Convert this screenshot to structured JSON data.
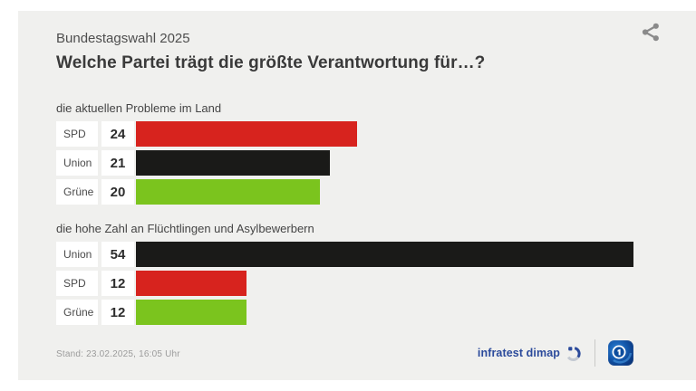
{
  "header": {
    "kicker": "Bundestagswahl 2025",
    "title": "Welche Partei trägt die größte Verantwortung für…?"
  },
  "toolbar": {
    "share_icon": "share-icon"
  },
  "chart_data": [
    {
      "type": "bar",
      "orientation": "horizontal",
      "title": "die aktuellen Probleme im Land",
      "categories": [
        "SPD",
        "Union",
        "Grüne"
      ],
      "values": [
        24,
        21,
        20
      ],
      "colors": [
        "#d7231e",
        "#1a1a18",
        "#7bc41e"
      ],
      "xlim": [
        0,
        54
      ],
      "value_labels": true,
      "grid": false,
      "legend": "none"
    },
    {
      "type": "bar",
      "orientation": "horizontal",
      "title": "die hohe Zahl an Flüchtlingen und Asylbewerbern",
      "categories": [
        "Union",
        "SPD",
        "Grüne"
      ],
      "values": [
        54,
        12,
        12
      ],
      "colors": [
        "#1a1a18",
        "#d7231e",
        "#7bc41e"
      ],
      "xlim": [
        0,
        54
      ],
      "value_labels": true,
      "grid": false,
      "legend": "none"
    }
  ],
  "footer": {
    "stand": "Stand: 23.02.2025, 16:05 Uhr",
    "source_label": "infratest dimap",
    "source_icon": "infratest-dimap-icon",
    "broadcaster_icon": "tagesschau-logo"
  },
  "colors": {
    "page_bg": "#ffffff",
    "card_bg": "#f0f0ee",
    "kicker_text": "#4e4e4e",
    "title_text": "#3a3a3a",
    "row_box_bg": "#ffffff",
    "stand_text": "#9b9b9b",
    "share_icon": "#8a8a8a",
    "infratest_blue": "#2b4a9b",
    "spd_red": "#d7231e",
    "union_black": "#1a1a18",
    "gruene_green": "#7bc41e"
  }
}
